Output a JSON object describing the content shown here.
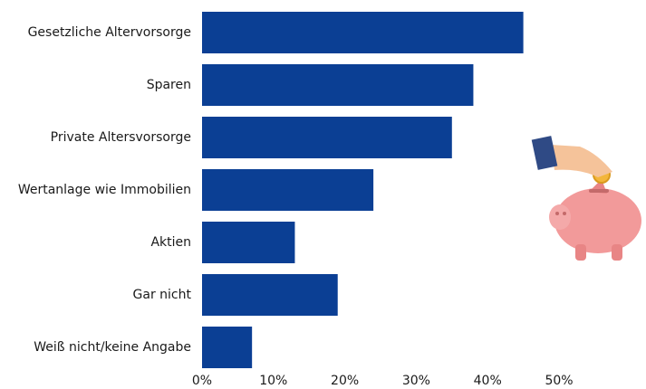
{
  "chart_data": {
    "type": "barh",
    "categories": [
      "Gesetzliche Altervorsorge",
      "Sparen",
      "Private Altersvorsorge",
      "Wertanlage wie Immobilien",
      "Aktien",
      "Gar nicht",
      "Weiß nicht/keine Angabe"
    ],
    "values": [
      45,
      38,
      35,
      24,
      13,
      19,
      7
    ],
    "color": "#0b3f94",
    "xlim": [
      0,
      50
    ],
    "xticks": [
      {
        "value": 0,
        "label": "0%"
      },
      {
        "value": 10,
        "label": "10%"
      },
      {
        "value": 20,
        "label": "20%"
      },
      {
        "value": 30,
        "label": "30%"
      },
      {
        "value": 40,
        "label": "40%"
      },
      {
        "value": 50,
        "label": "50%"
      }
    ],
    "grid": false
  }
}
